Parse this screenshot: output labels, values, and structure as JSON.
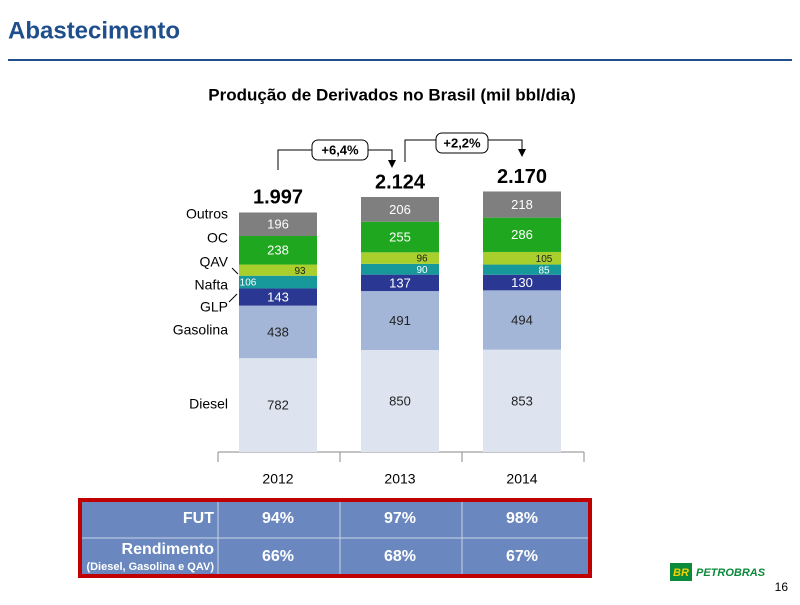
{
  "header": {
    "title": "Abastecimento"
  },
  "chart_data": {
    "type": "stacked-bar",
    "title": "Produção de Derivados no Brasil (mil bbl/dia)",
    "categories": [
      "2012",
      "2013",
      "2014"
    ],
    "series": [
      {
        "name": "Diesel",
        "color": "#dde4ef",
        "values": [
          782,
          850,
          853
        ]
      },
      {
        "name": "Gasolina",
        "color": "#a3b6d8",
        "values": [
          438,
          491,
          494
        ]
      },
      {
        "name": "GLP",
        "color": "#2b3893",
        "values": [
          143,
          137,
          130
        ]
      },
      {
        "name": "Nafta",
        "color": "#17989a",
        "values": [
          106,
          90,
          85
        ]
      },
      {
        "name": "QAV",
        "color": "#a8cf2c",
        "values": [
          93,
          96,
          105
        ]
      },
      {
        "name": "OC",
        "color": "#1fa81f",
        "values": [
          238,
          255,
          286
        ]
      },
      {
        "name": "Outros",
        "color": "#7f7f7f",
        "values": [
          196,
          206,
          218
        ]
      }
    ],
    "totals": {
      "values": [
        1997,
        2124,
        2170
      ],
      "value_labels": [
        "1.997",
        "2.124",
        "2.170"
      ]
    },
    "annotations": [
      "+6,4%",
      "+2,2%"
    ]
  },
  "table": {
    "rows": [
      {
        "label": "FUT",
        "cells": [
          "94%",
          "97%",
          "98%"
        ]
      },
      {
        "label": "Rendimento",
        "sublabel": "(Diesel, Gasolina e QAV)",
        "cells": [
          "66%",
          "68%",
          "67%"
        ]
      }
    ]
  },
  "footer": {
    "logo": "PETROBRAS",
    "logo_mark": "BR",
    "page": "16"
  }
}
